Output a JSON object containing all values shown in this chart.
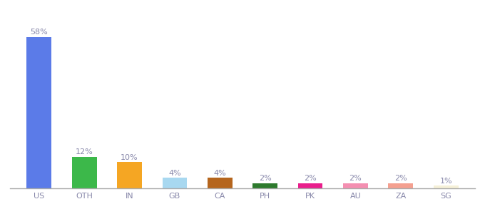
{
  "categories": [
    "US",
    "OTH",
    "IN",
    "GB",
    "CA",
    "PH",
    "PK",
    "AU",
    "ZA",
    "SG"
  ],
  "values": [
    58,
    12,
    10,
    4,
    4,
    2,
    2,
    2,
    2,
    1
  ],
  "bar_colors": [
    "#5b7be8",
    "#3cb84a",
    "#f5a623",
    "#a8d8f0",
    "#b5651d",
    "#2d7a2d",
    "#e91e8c",
    "#f48fb1",
    "#f4a090",
    "#f5f0d8"
  ],
  "labels": [
    "58%",
    "12%",
    "10%",
    "4%",
    "4%",
    "2%",
    "2%",
    "2%",
    "2%",
    "1%"
  ],
  "label_color": "#8888aa",
  "label_fontsize": 8,
  "background_color": "#ffffff",
  "tick_fontsize": 8,
  "tick_color": "#8888aa",
  "ylim": [
    0,
    68
  ],
  "bar_width": 0.55
}
